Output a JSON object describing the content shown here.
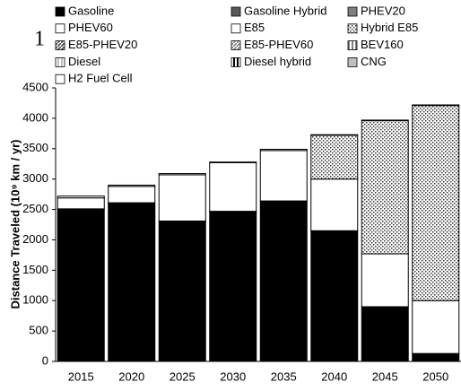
{
  "chart_data": {
    "type": "stacked_bar",
    "annotation": "1",
    "ylabel": "Distance Traveled (10⁹ km / yr)",
    "categories": [
      "2015",
      "2020",
      "2025",
      "2030",
      "2035",
      "2040",
      "2045",
      "2050"
    ],
    "ylim": [
      0,
      4500
    ],
    "yticks": [
      0,
      500,
      1000,
      1500,
      2000,
      2500,
      3000,
      3500,
      4000,
      4500
    ],
    "grid": false,
    "series": [
      {
        "name": "Gasoline",
        "color": "#000000",
        "values": [
          2510,
          2610,
          2310,
          2470,
          2640,
          2150,
          900,
          130
        ]
      },
      {
        "name": "Gasoline Hybrid",
        "color": "#595959",
        "values": [
          0,
          0,
          0,
          0,
          0,
          0,
          0,
          0
        ]
      },
      {
        "name": "PHEV20",
        "color": "#7f7f7f",
        "values": [
          0,
          0,
          0,
          0,
          0,
          0,
          0,
          0
        ]
      },
      {
        "name": "PHEV60",
        "color": "#ffffff",
        "values": [
          0,
          0,
          0,
          0,
          0,
          0,
          0,
          0
        ]
      },
      {
        "name": "E85",
        "color": "#ffffff",
        "values": [
          180,
          270,
          760,
          800,
          830,
          850,
          870,
          870
        ]
      },
      {
        "name": "Hybrid E85",
        "color": "#d0d0d0",
        "pattern": "dots",
        "values": [
          0,
          0,
          0,
          0,
          0,
          720,
          2190,
          3210
        ]
      },
      {
        "name": "E85-PHEV20",
        "color": "#404040",
        "pattern": "diagonal",
        "values": [
          0,
          0,
          0,
          0,
          0,
          0,
          0,
          0
        ]
      },
      {
        "name": "E85-PHEV60",
        "color": "#808080",
        "pattern": "diagonal",
        "values": [
          0,
          0,
          0,
          0,
          0,
          0,
          0,
          0
        ]
      },
      {
        "name": "BEV160",
        "color": "#808080",
        "pattern": "vertical",
        "values": [
          0,
          0,
          0,
          0,
          0,
          0,
          0,
          0
        ]
      },
      {
        "name": "Diesel",
        "color": "#bfbfbf",
        "pattern": "vertical",
        "values": [
          0,
          0,
          0,
          0,
          0,
          0,
          0,
          0
        ]
      },
      {
        "name": "Diesel hybrid",
        "color": "#000000",
        "pattern": "vertical",
        "values": [
          0,
          0,
          0,
          0,
          0,
          0,
          0,
          0
        ]
      },
      {
        "name": "CNG",
        "color": "#bfbfbf",
        "values": [
          0,
          0,
          0,
          0,
          0,
          0,
          0,
          0
        ]
      },
      {
        "name": "H2 Fuel Cell",
        "color": "#ffffff",
        "values": [
          30,
          20,
          20,
          10,
          20,
          10,
          10,
          10
        ]
      }
    ]
  }
}
